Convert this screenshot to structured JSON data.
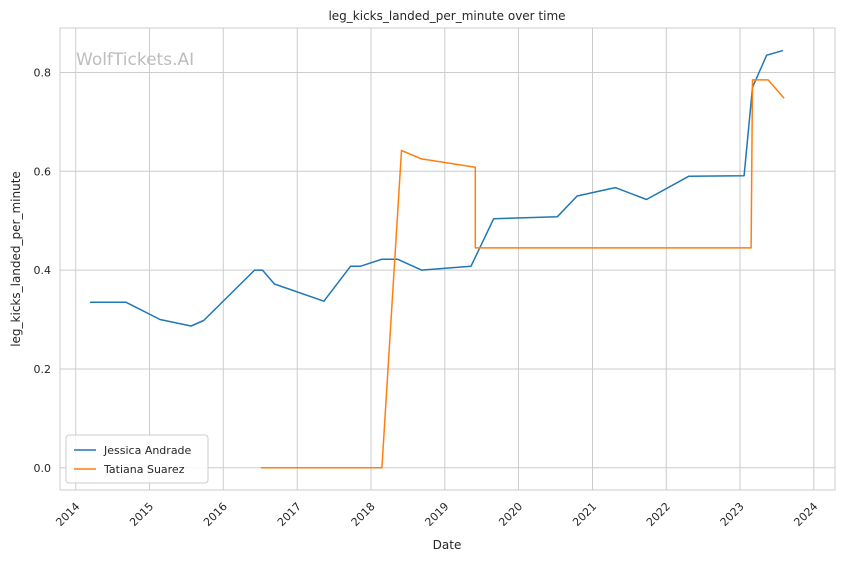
{
  "chart_data": {
    "type": "line",
    "title": "leg_kicks_landed_per_minute over time",
    "xlabel": "Date",
    "ylabel": "leg_kicks_landed_per_minute",
    "watermark": "WolfTickets.AI",
    "xlim": [
      "2013-10-15",
      "2024-04-15"
    ],
    "ylim": [
      -0.045,
      0.89
    ],
    "x_ticks": [
      "2014-01-01",
      "2015-01-01",
      "2016-01-01",
      "2017-01-01",
      "2018-01-01",
      "2019-01-01",
      "2020-01-01",
      "2021-01-01",
      "2022-01-01",
      "2023-01-01",
      "2024-01-01"
    ],
    "x_tick_labels": [
      "2014",
      "2015",
      "2016",
      "2017",
      "2018",
      "2019",
      "2020",
      "2021",
      "2022",
      "2023",
      "2024"
    ],
    "y_ticks": [
      0.0,
      0.2,
      0.4,
      0.6,
      0.8
    ],
    "y_tick_labels": [
      "0.0",
      "0.2",
      "0.4",
      "0.6",
      "0.8"
    ],
    "grid": true,
    "legend_position": "lower-left",
    "series": [
      {
        "name": "Jessica Andrade",
        "color": "#1f77b4",
        "points": [
          [
            "2014-03-15",
            0.335
          ],
          [
            "2014-09-06",
            0.335
          ],
          [
            "2015-02-22",
            0.3
          ],
          [
            "2015-07-25",
            0.287
          ],
          [
            "2015-09-26",
            0.298
          ],
          [
            "2016-06-04",
            0.4
          ],
          [
            "2016-07-13",
            0.4
          ],
          [
            "2016-09-10",
            0.372
          ],
          [
            "2017-05-13",
            0.337
          ],
          [
            "2017-09-22",
            0.408
          ],
          [
            "2017-11-11",
            0.408
          ],
          [
            "2018-02-24",
            0.422
          ],
          [
            "2018-05-12",
            0.422
          ],
          [
            "2018-09-08",
            0.4
          ],
          [
            "2019-05-11",
            0.408
          ],
          [
            "2019-08-31",
            0.504
          ],
          [
            "2020-07-11",
            0.508
          ],
          [
            "2020-10-17",
            0.55
          ],
          [
            "2021-04-24",
            0.567
          ],
          [
            "2021-09-25",
            0.543
          ],
          [
            "2022-04-23",
            0.59
          ],
          [
            "2023-01-21",
            0.591
          ],
          [
            "2023-03-04",
            0.77
          ],
          [
            "2023-05-13",
            0.835
          ],
          [
            "2023-07-29",
            0.844
          ]
        ]
      },
      {
        "name": "Tatiana Suarez",
        "color": "#ff7f0e",
        "points": [
          [
            "2016-07-08",
            0.0
          ],
          [
            "2018-02-24",
            0.0
          ],
          [
            "2018-06-01",
            0.642
          ],
          [
            "2018-09-08",
            0.625
          ],
          [
            "2019-06-01",
            0.608
          ],
          [
            "2019-06-01",
            0.445
          ],
          [
            "2023-02-25",
            0.445
          ],
          [
            "2023-03-04",
            0.785
          ],
          [
            "2023-05-20",
            0.785
          ],
          [
            "2023-08-05",
            0.749
          ]
        ]
      }
    ]
  }
}
